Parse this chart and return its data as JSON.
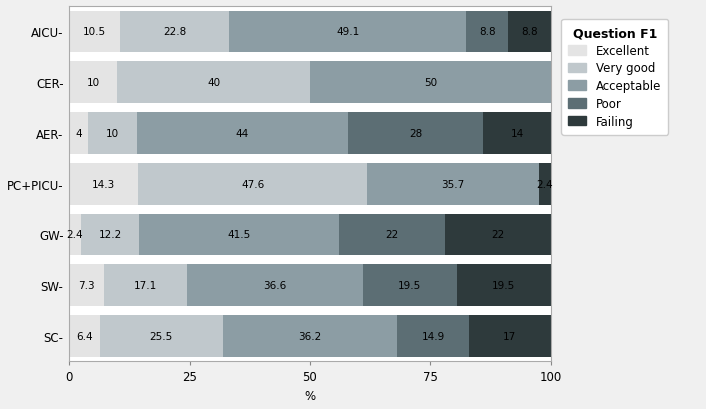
{
  "categories": [
    "AICU",
    "CER",
    "AER",
    "PC+PICU",
    "GW",
    "SW",
    "SC"
  ],
  "series": {
    "Excellent": [
      10.5,
      10,
      4,
      14.3,
      2.4,
      7.3,
      6.4
    ],
    "Very good": [
      22.8,
      40,
      10,
      47.6,
      12.2,
      17.1,
      25.5
    ],
    "Acceptable": [
      49.1,
      50,
      44,
      35.7,
      41.5,
      36.6,
      36.2
    ],
    "Poor": [
      8.8,
      0,
      28,
      0,
      22,
      19.5,
      14.9
    ],
    "Failing": [
      8.8,
      0,
      14,
      2.4,
      22,
      19.5,
      17
    ]
  },
  "colors": {
    "Excellent": "#e4e4e4",
    "Very good": "#c0c8cc",
    "Acceptable": "#8c9da4",
    "Poor": "#5c6e74",
    "Failing": "#2e3a3c"
  },
  "legend_title": "Question F1",
  "xlabel": "%",
  "xlim": [
    0,
    100
  ],
  "xticks": [
    0,
    25,
    50,
    75,
    100
  ],
  "plot_bg": "#ffffff",
  "fig_bg": "#f0f0f0",
  "bar_height": 0.82,
  "text_fontsize": 7.5,
  "label_fontsize": 8.5,
  "legend_fontsize": 8.5,
  "legend_title_fontsize": 9
}
